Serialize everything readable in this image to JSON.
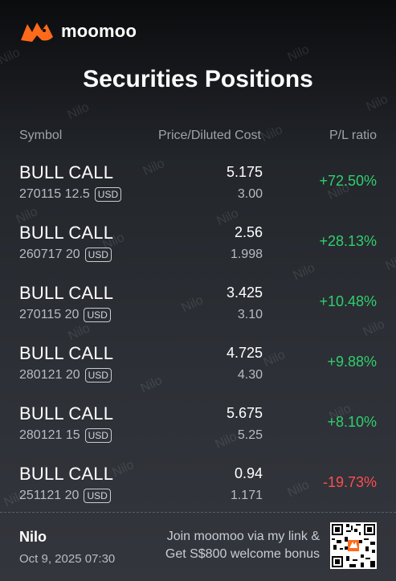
{
  "brand": {
    "name": "moomoo",
    "logo_icon": "bull-icon",
    "accent": "#ff6a1a"
  },
  "title": "Securities Positions",
  "headers": {
    "symbol": "Symbol",
    "price": "Price/Diluted Cost",
    "pl": "P/L ratio"
  },
  "positions": [
    {
      "name": "BULL CALL",
      "expiry_strike": "270115 12.5",
      "currency": "USD",
      "price": "5.175",
      "cost": "3.00",
      "pl": "+72.50%",
      "direction": "up"
    },
    {
      "name": "BULL CALL",
      "expiry_strike": "260717 20",
      "currency": "USD",
      "price": "2.56",
      "cost": "1.998",
      "pl": "+28.13%",
      "direction": "up"
    },
    {
      "name": "BULL CALL",
      "expiry_strike": "270115 20",
      "currency": "USD",
      "price": "3.425",
      "cost": "3.10",
      "pl": "+10.48%",
      "direction": "up"
    },
    {
      "name": "BULL CALL",
      "expiry_strike": "280121 20",
      "currency": "USD",
      "price": "4.725",
      "cost": "4.30",
      "pl": "+9.88%",
      "direction": "up"
    },
    {
      "name": "BULL CALL",
      "expiry_strike": "280121 15",
      "currency": "USD",
      "price": "5.675",
      "cost": "5.25",
      "pl": "+8.10%",
      "direction": "up"
    },
    {
      "name": "BULL CALL",
      "expiry_strike": "251121 20",
      "currency": "USD",
      "price": "0.94",
      "cost": "1.171",
      "pl": "-19.73%",
      "direction": "down"
    }
  ],
  "colors": {
    "gain": "#2fcf6e",
    "loss": "#ff4d4f"
  },
  "watermark_text": "Nilo",
  "footer": {
    "username": "Nilo",
    "datetime": "Oct 9, 2025 07:30",
    "promo_line1": "Join moomoo via my link &",
    "promo_line2": "Get S$800 welcome bonus",
    "qr_icon": "qr-code-icon"
  }
}
